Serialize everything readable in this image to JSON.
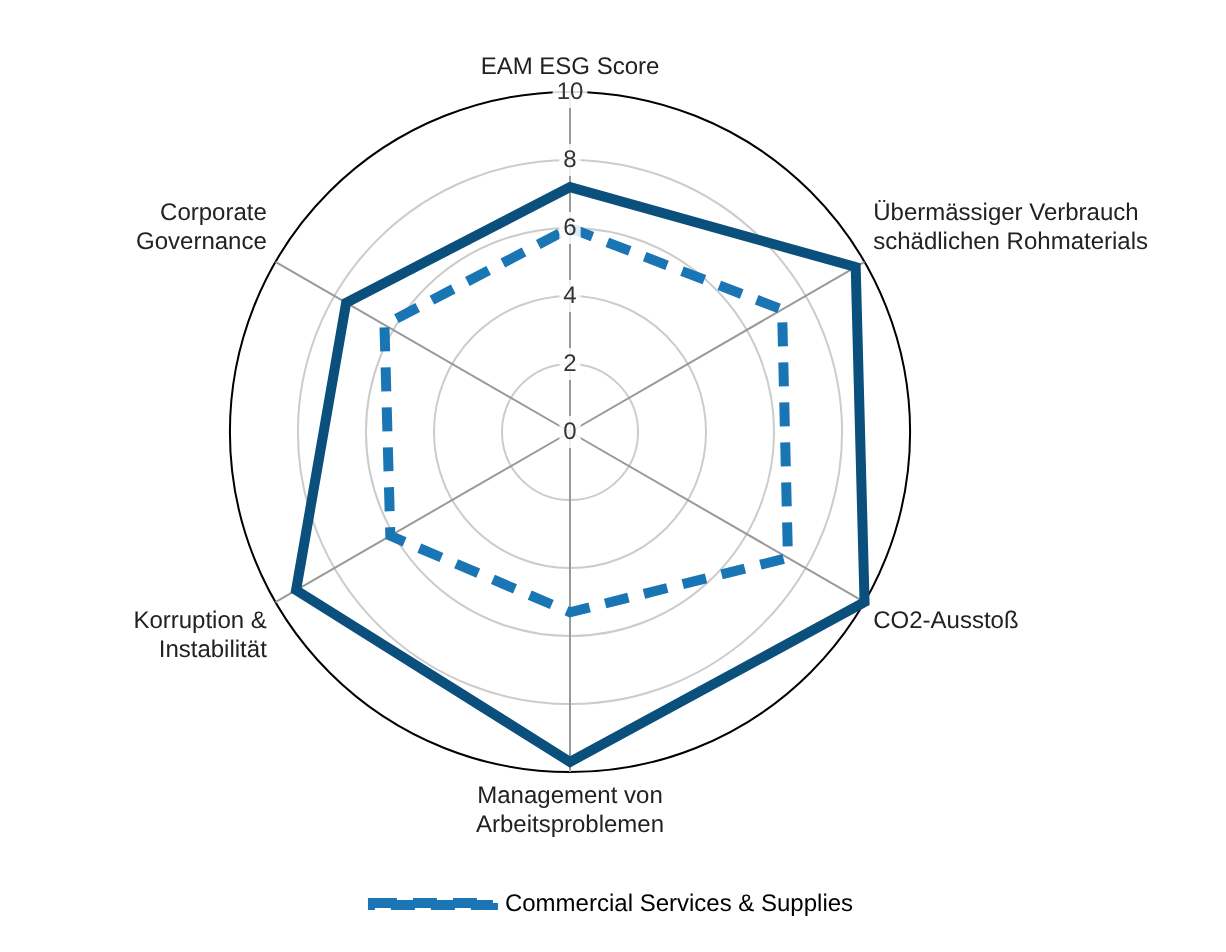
{
  "chart_data": {
    "type": "radar",
    "categories": [
      "EAM ESG Score",
      "Übermässiger Verbrauch schädlichen Rohmaterials",
      "CO2-Ausstoß",
      "Management von Arbeitsproblemen",
      "Korruption & Instabilität",
      "Corporate Governance"
    ],
    "series": [
      {
        "color": "#0b4f7c",
        "values": [
          7.2,
          9.7,
          10,
          9.7,
          9.3,
          7.6
        ],
        "line_style": "solid"
      },
      {
        "name": "Commercial Services & Supplies",
        "color": "#1a75b5",
        "values": [
          6.0,
          7.2,
          7.4,
          5.3,
          6.1,
          6.3
        ],
        "line_style": "dashed"
      }
    ],
    "ylim": [
      0,
      10
    ],
    "yticks": [
      0,
      2,
      4,
      6,
      8,
      10
    ],
    "grid": true,
    "legend": "bottom",
    "marker": "none"
  }
}
